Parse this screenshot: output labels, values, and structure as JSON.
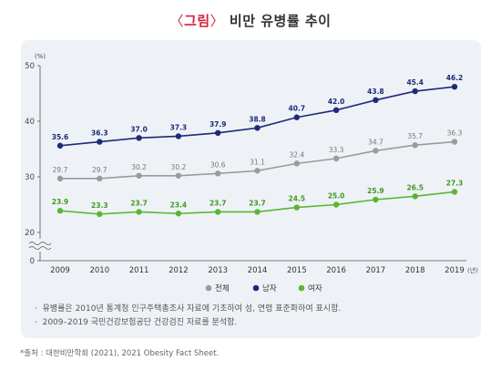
{
  "title": {
    "label": "그림",
    "text": "비만 유병률 추이"
  },
  "notes": [
    "유병률은 2010년 통계청 인구주택총조사 자료에 기초하여 성, 연령 표준화하여 표시함.",
    "2009–2019 국민건강보험공단 건강검진 자료를 분석함."
  ],
  "source": "*출처 : 대한비만학회 (2021), 2021 Obesity Fact Sheet.",
  "colors": {
    "male": "#1e2a78",
    "total": "#9b9b9b",
    "female": "#5cb531",
    "panel": "#eef2f7"
  },
  "chart_data": {
    "type": "line",
    "ylabel": "(%)",
    "xlabel": "(년)",
    "x": [
      "2009",
      "2010",
      "2011",
      "2012",
      "2013",
      "2014",
      "2015",
      "2016",
      "2017",
      "2018",
      "2019"
    ],
    "yticks": [
      0,
      20,
      30,
      40,
      50
    ],
    "ylim": [
      0,
      50
    ],
    "axis_break": true,
    "grid": false,
    "legend_position": "bottom-center",
    "series": [
      {
        "name": "전체",
        "key": "total",
        "values": [
          29.7,
          29.7,
          30.2,
          30.2,
          30.6,
          31.1,
          32.4,
          33.3,
          34.7,
          35.7,
          36.3
        ]
      },
      {
        "name": "남자",
        "key": "male",
        "values": [
          35.6,
          36.3,
          37.0,
          37.3,
          37.9,
          38.8,
          40.7,
          42.0,
          43.8,
          45.4,
          46.2
        ]
      },
      {
        "name": "여자",
        "key": "female",
        "values": [
          23.9,
          23.3,
          23.7,
          23.4,
          23.7,
          23.7,
          24.5,
          25.0,
          25.9,
          26.5,
          27.3
        ]
      }
    ]
  }
}
